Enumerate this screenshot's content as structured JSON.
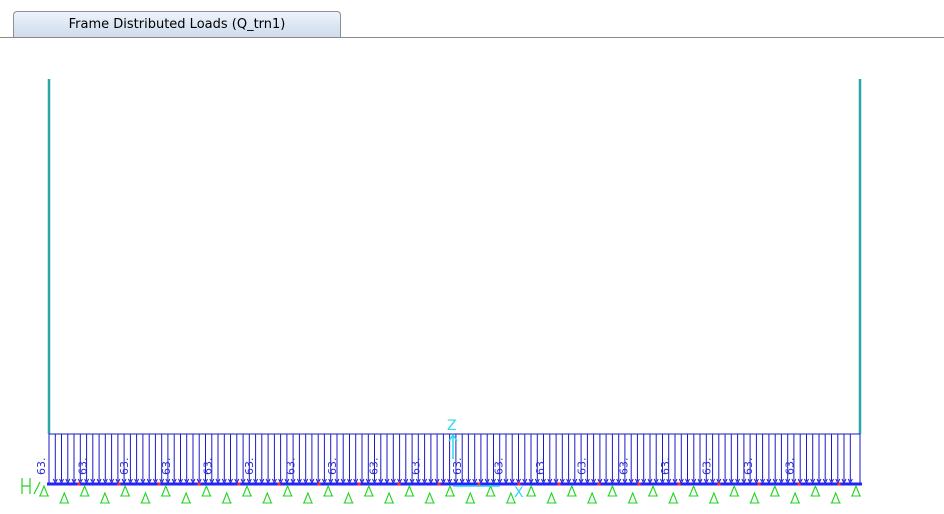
{
  "tab": {
    "title": "Frame Distributed Loads (Q_trn1)"
  },
  "load_diagram": {
    "label_value": "63.",
    "label_count": 19
  },
  "axes": {
    "z_label": "Z",
    "x_label": "X"
  },
  "colors": {
    "frame": "#2aa6a6",
    "load": "#1a1ac8",
    "load_label": "#2b2bd6",
    "support": "#22d422",
    "axis": "#2fd7ee",
    "beam": "#2323ff",
    "node_marker": "#ff2a2a"
  }
}
